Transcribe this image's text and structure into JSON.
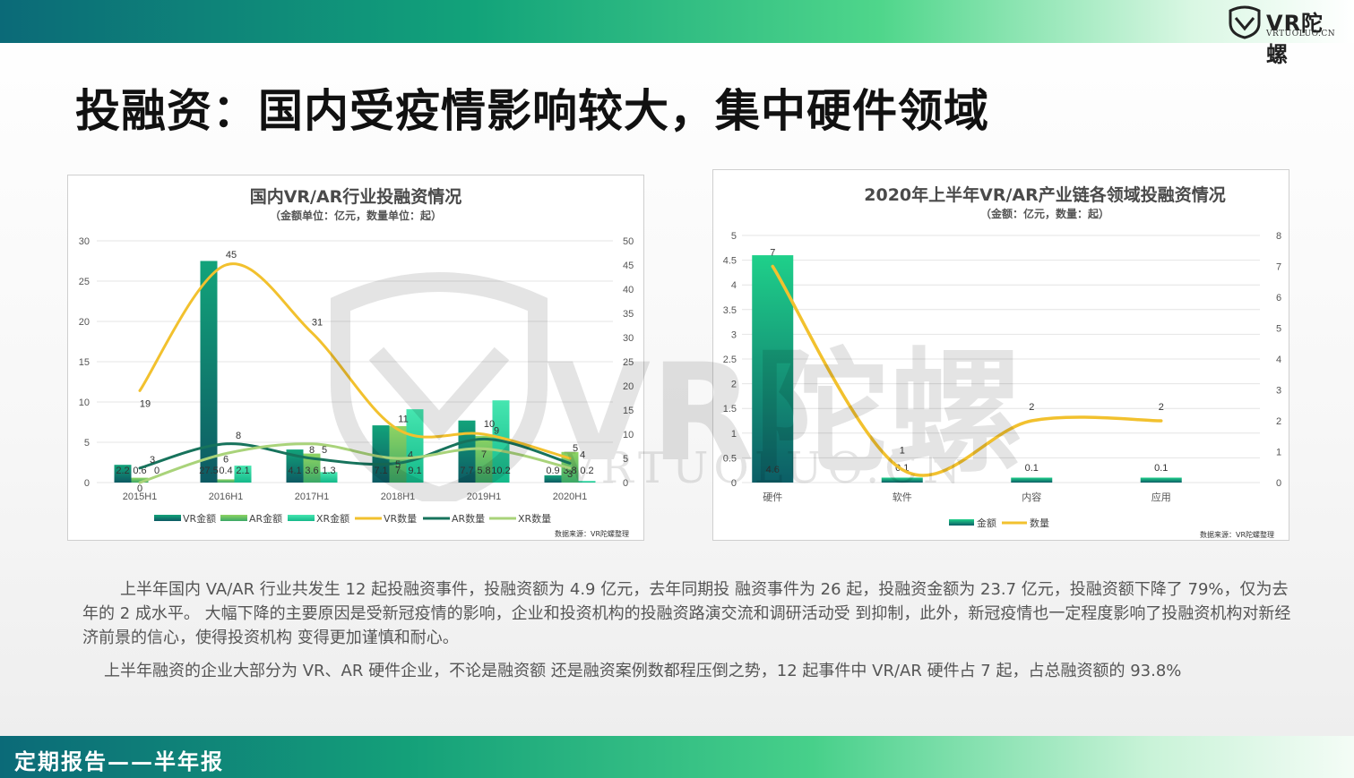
{
  "header": {
    "logo_text": "VR陀螺",
    "logo_sub": "VRTUOLUO.CN",
    "title": "投融资：国内受疫情影响较大，集中硬件领域"
  },
  "watermark": {
    "text": "VR陀螺",
    "sub": "VRTUOLUO.CN"
  },
  "colors": {
    "vr_amount": "#1b8f72",
    "ar_amount": "#6cc36f",
    "xr_amount": "#2fd9a2",
    "vr_count": "#f2c12e",
    "ar_count": "#17735c",
    "xr_count": "#a9d37a"
  },
  "chart_data": [
    {
      "type": "bar",
      "title": "国内VR/AR行业投融资情况",
      "subtitle": "（金额单位：亿元，数量单位：起）",
      "categories": [
        "2015H1",
        "2016H1",
        "2017H1",
        "2018H1",
        "2019H1",
        "2020H1"
      ],
      "ylim": [
        0,
        30
      ],
      "y_ticks": [
        "0",
        "5",
        "10",
        "15",
        "20",
        "25",
        "30"
      ],
      "y2lim": [
        0,
        50
      ],
      "y2_ticks": [
        "0",
        "5",
        "10",
        "15",
        "20",
        "25",
        "30",
        "35",
        "40",
        "45",
        "50"
      ],
      "series": [
        {
          "name": "VR金额",
          "kind": "bar",
          "axis": "left",
          "values": [
            2.2,
            27.5,
            4.1,
            7.1,
            7.7,
            0.9
          ]
        },
        {
          "name": "AR金额",
          "kind": "bar",
          "axis": "left",
          "values": [
            0.6,
            0.4,
            3.6,
            7,
            5.8,
            3.8
          ]
        },
        {
          "name": "XR金额",
          "kind": "bar",
          "axis": "left",
          "values": [
            0,
            2.1,
            1.3,
            9.1,
            10.2,
            0.2
          ]
        },
        {
          "name": "VR数量",
          "kind": "line",
          "axis": "right",
          "values": [
            19,
            45,
            31,
            11,
            10,
            5
          ]
        },
        {
          "name": "AR数量",
          "kind": "line",
          "axis": "right",
          "values": [
            3,
            8,
            5,
            4,
            9,
            4
          ]
        },
        {
          "name": "XR数量",
          "kind": "line",
          "axis": "right",
          "values": [
            0,
            6,
            8,
            5,
            7,
            3
          ]
        }
      ],
      "bar_labels": [
        [
          "2.2",
          "27.5",
          "4.1",
          "7.1",
          "7.7",
          "0.9"
        ],
        [
          "0.6",
          "0.4",
          "3.6",
          "7",
          "5.8",
          "3.8"
        ],
        [
          "0",
          "2.1",
          "1.3",
          "9.1",
          "10.2",
          "0.2"
        ]
      ],
      "line_labels": [
        [
          "19",
          "45",
          "31",
          "11",
          "10",
          "5"
        ],
        [
          "3",
          "8",
          "5",
          "4",
          "9",
          "4"
        ],
        [
          "0",
          "6",
          "8",
          "5",
          "7",
          "3"
        ]
      ],
      "legend": [
        "VR金额",
        "AR金额",
        "XR金额",
        "VR数量",
        "AR数量",
        "XR数量"
      ],
      "legend_position": "bottom",
      "source": "数据来源：VR陀螺整理"
    },
    {
      "type": "bar",
      "title": "2020年上半年VR/AR产业链各领域投融资情况",
      "subtitle": "（金额：亿元，数量：起）",
      "categories": [
        "硬件",
        "软件",
        "内容",
        "应用"
      ],
      "ylim": [
        0,
        5
      ],
      "y_ticks": [
        "0",
        "0.5",
        "1",
        "1.5",
        "2",
        "2.5",
        "3",
        "3.5",
        "4",
        "4.5",
        "5"
      ],
      "y2lim": [
        0,
        8
      ],
      "y2_ticks": [
        "0",
        "1",
        "2",
        "3",
        "4",
        "5",
        "6",
        "7",
        "8"
      ],
      "series": [
        {
          "name": "金额",
          "kind": "bar",
          "axis": "left",
          "values": [
            4.6,
            0.1,
            0.1,
            0.1
          ]
        },
        {
          "name": "数量",
          "kind": "line",
          "axis": "right",
          "values": [
            7,
            1,
            2,
            2
          ]
        }
      ],
      "bar_labels": [
        [
          "4.6",
          "0.1",
          "0.1",
          "0.1"
        ]
      ],
      "line_labels": [
        [
          "7",
          "1",
          "2",
          "2"
        ]
      ],
      "legend": [
        "金额",
        "数量"
      ],
      "legend_position": "bottom",
      "source": "数据来源：VR陀螺整理"
    }
  ],
  "body": {
    "p1": "上半年国内 VA/AR 行业共发生 12 起投融资事件，投融资额为 4.9 亿元，去年同期投 融资事件为 26 起，投融资金额为 23.7 亿元，投融资额下降了 79%，仅为去年的 2 成水平。 大幅下降的主要原因是受新冠疫情的影响，企业和投资机构的投融资路演交流和调研活动受 到抑制，此外，新冠疫情也一定程度影响了投融资机构对新经济前景的信心，使得投资机构 变得更加谨慎和耐心。",
    "p2": "上半年融资的企业大部分为 VR、AR 硬件企业，不论是融资额 还是融资案例数都程压倒之势，12 起事件中 VR/AR 硬件占 7 起，占总融资额的 93.8%"
  },
  "footer": {
    "text": "定期报告——半年报"
  }
}
